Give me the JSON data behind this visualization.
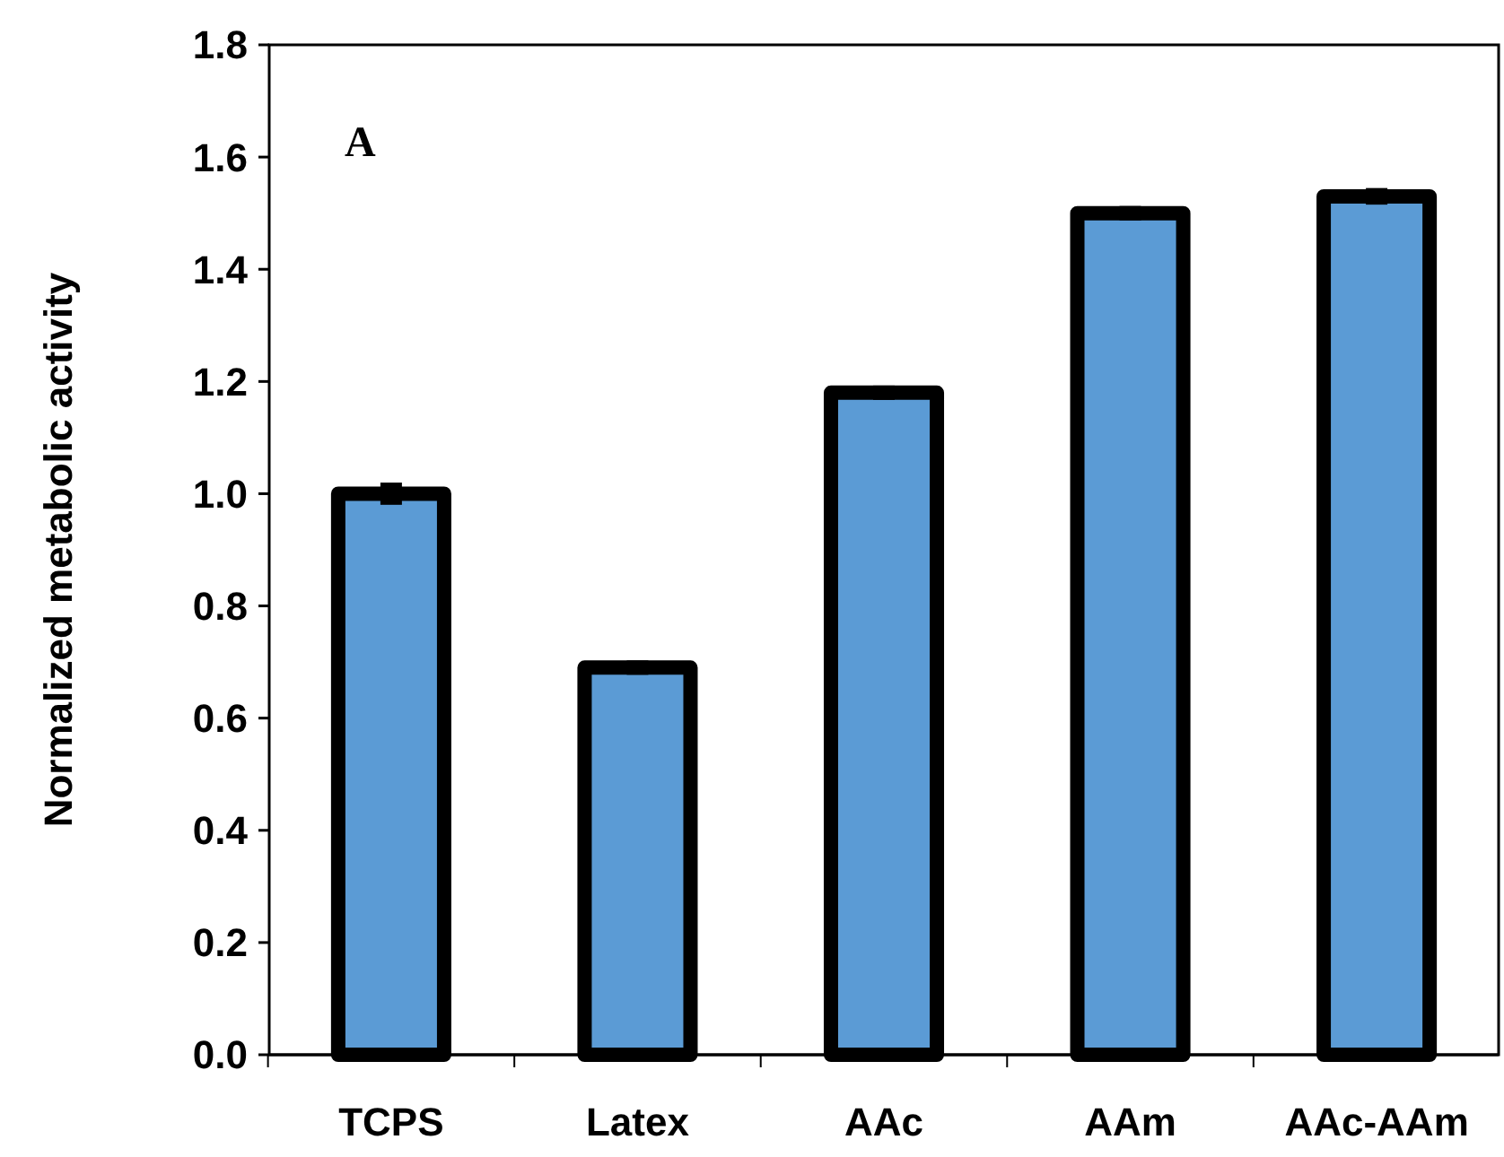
{
  "chart_data": {
    "type": "bar",
    "ylabel": "Normalized metabolic activity",
    "annotations": [
      "A"
    ],
    "categories": [
      "TCPS",
      "Latex",
      "AAc",
      "AAm",
      "AAc-AAm"
    ],
    "values": [
      1.0,
      0.69,
      1.18,
      1.5,
      1.53
    ],
    "errors": [
      0.015,
      0.008,
      0.008,
      0.008,
      0.01
    ],
    "color": "#5b9bd5",
    "ylim": [
      0,
      1.8
    ],
    "yticks": [
      {
        "value": 0,
        "label": "0.0"
      },
      {
        "value": 0.2,
        "label": "0.2"
      },
      {
        "value": 0.4,
        "label": "0.4"
      },
      {
        "value": 0.6,
        "label": "0.6"
      },
      {
        "value": 0.8,
        "label": "0.8"
      },
      {
        "value": 1,
        "label": "1.0"
      },
      {
        "value": 1.2,
        "label": "1.2"
      },
      {
        "value": 1.4,
        "label": "1.4"
      },
      {
        "value": 1.6,
        "label": "1.6"
      },
      {
        "value": 1.8,
        "label": "1.8"
      }
    ],
    "grid": false
  }
}
